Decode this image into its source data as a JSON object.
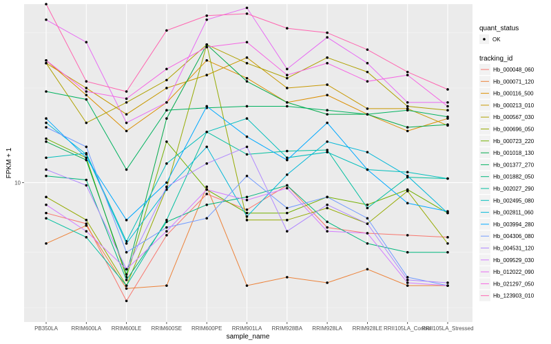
{
  "chart_data": {
    "type": "line",
    "xlabel": "sample_name",
    "ylabel": "FPKM + 1",
    "y_scale": "log",
    "y_tick_labels": [
      "10"
    ],
    "y_tick_values": [
      10
    ],
    "ylim": [
      3.6,
      37
    ],
    "grid": true,
    "legend_position": "right",
    "categories": [
      "PB350LA",
      "RRIM600LA",
      "RRIM600LE",
      "RRIM600SE",
      "RRIM600PE",
      "RRIM901LA",
      "RRIM928BA",
      "RRIM928LA",
      "RRIM928LE",
      "RRII105LA_Control",
      "RRII105LA_Stressed"
    ],
    "shape_legend": {
      "title": "quant_status",
      "items": [
        "OK"
      ]
    },
    "color_legend_title": "tracking_id",
    "series": [
      {
        "name": "Hb_000048_060",
        "color": "#F8766D",
        "values": [
          8.0,
          7.4,
          4.2,
          6.8,
          9.2,
          8.2,
          9.8,
          7.2,
          6.9,
          6.8,
          6.7
        ]
      },
      {
        "name": "Hb_000071_120",
        "color": "#EC8239",
        "values": [
          6.4,
          7.3,
          4.6,
          4.7,
          9.7,
          4.7,
          5.0,
          4.8,
          5.3,
          4.7,
          4.7
        ]
      },
      {
        "name": "Hb_000116_500",
        "color": "#DB8E00",
        "values": [
          24.5,
          19.0,
          14.6,
          18.0,
          24.5,
          21.5,
          18.0,
          19.0,
          16.5,
          14.6,
          16.0
        ]
      },
      {
        "name": "Hb_000213_010",
        "color": "#C79800",
        "values": [
          24.0,
          20.0,
          16.5,
          20.0,
          22.0,
          25.0,
          20.0,
          20.5,
          17.2,
          17.2,
          15.2
        ]
      },
      {
        "name": "Hb_000567_030",
        "color": "#AFA100",
        "values": [
          24.0,
          15.5,
          18.0,
          21.2,
          27.5,
          24.0,
          21.5,
          25.0,
          22.5,
          17.5,
          17.0
        ]
      },
      {
        "name": "Hb_000696_050",
        "color": "#94AA00",
        "values": [
          9.0,
          7.6,
          4.7,
          9.6,
          27.5,
          7.6,
          7.6,
          8.3,
          7.4,
          9.4,
          6.4
        ]
      },
      {
        "name": "Hb_000723_220",
        "color": "#72B000",
        "values": [
          13.8,
          12.0,
          5.0,
          13.5,
          9.5,
          8.0,
          8.0,
          9.0,
          8.5,
          9.5,
          8.0
        ]
      },
      {
        "name": "Hb_001018_130",
        "color": "#00A94A",
        "values": [
          13.5,
          11.8,
          5.1,
          16.0,
          27.5,
          21.0,
          18.0,
          16.5,
          16.5,
          15.0,
          15.3
        ]
      },
      {
        "name": "Hb_001377_270",
        "color": "#00B25F",
        "values": [
          19.5,
          18.4,
          11.0,
          17.0,
          17.3,
          17.5,
          17.5,
          17.0,
          16.5,
          17.0,
          16.2
        ]
      },
      {
        "name": "Hb_001882_050",
        "color": "#00B67D",
        "values": [
          10.5,
          10.2,
          4.9,
          7.5,
          8.5,
          9.0,
          9.8,
          7.5,
          6.4,
          6.0,
          6.0
        ]
      },
      {
        "name": "Hb_002027_290",
        "color": "#00BF9F",
        "values": [
          7.7,
          6.7,
          4.7,
          7.6,
          14.5,
          12.3,
          12.6,
          12.7,
          8.3,
          10.4,
          10.3
        ]
      },
      {
        "name": "Hb_002495_080",
        "color": "#00BEBC",
        "values": [
          12.0,
          12.4,
          6.5,
          11.5,
          14.5,
          16.0,
          12.0,
          12.5,
          11.0,
          10.8,
          10.3
        ]
      },
      {
        "name": "Hb_002811_060",
        "color": "#00B7D8",
        "values": [
          15.5,
          12.3,
          6.4,
          9.5,
          13.0,
          7.8,
          10.6,
          13.5,
          12.5,
          10.5,
          8.0
        ]
      },
      {
        "name": "Hb_003994_280",
        "color": "#00A9FF",
        "values": [
          16.0,
          12.0,
          7.6,
          10.0,
          17.5,
          14.0,
          11.8,
          15.5,
          11.0,
          8.6,
          8.1
        ]
      },
      {
        "name": "Hb_004306_080",
        "color": "#729BFF",
        "values": [
          15.0,
          13.0,
          6.0,
          7.2,
          7.7,
          10.5,
          8.3,
          9.0,
          7.7,
          5.0,
          4.7
        ]
      },
      {
        "name": "Hb_004531_120",
        "color": "#B088FF",
        "values": [
          11.0,
          9.8,
          5.3,
          9.7,
          11.5,
          13.0,
          7.0,
          8.5,
          7.4,
          4.9,
          4.8
        ]
      },
      {
        "name": "Hb_009529_030",
        "color": "#D37BFF",
        "values": [
          8.5,
          7.0,
          5.3,
          7.0,
          9.5,
          8.8,
          9.6,
          7.0,
          6.9,
          4.8,
          4.7
        ]
      },
      {
        "name": "Hb_012022_090",
        "color": "#E76BF3",
        "values": [
          33.0,
          28.0,
          15.5,
          18.0,
          33.0,
          36.0,
          23.0,
          29.0,
          24.0,
          18.0,
          18.0
        ]
      },
      {
        "name": "Hb_021297_050",
        "color": "#F564E3",
        "values": [
          24.5,
          19.5,
          18.5,
          23.0,
          27.0,
          28.0,
          22.0,
          24.0,
          21.0,
          22.0,
          17.5
        ]
      },
      {
        "name": "Hb_123903_010",
        "color": "#FF64B0",
        "values": [
          37.0,
          21.0,
          19.5,
          30.5,
          34.0,
          34.5,
          31.0,
          30.0,
          26.5,
          22.5,
          19.8
        ]
      }
    ]
  }
}
